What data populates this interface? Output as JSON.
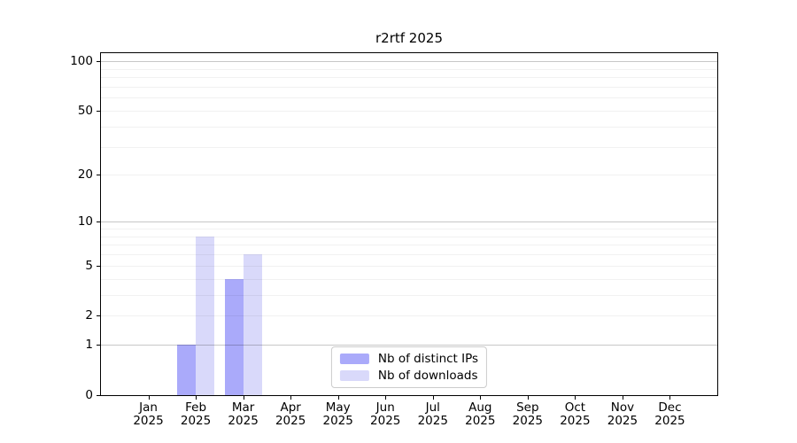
{
  "figure": {
    "title": "r2rtf 2025"
  },
  "chart_data": {
    "type": "bar",
    "title": "r2rtf 2025",
    "categories": [
      "Jan",
      "Feb",
      "Mar",
      "Apr",
      "May",
      "Jun",
      "Jul",
      "Aug",
      "Sep",
      "Oct",
      "Nov",
      "Dec"
    ],
    "category_year": "2025",
    "series": [
      {
        "name": "Nb of distinct IPs",
        "color": "#aaaafa",
        "values": [
          0,
          1,
          4,
          0,
          0,
          0,
          0,
          0,
          0,
          0,
          0,
          0
        ]
      },
      {
        "name": "Nb of downloads",
        "color": "#d9d9fa",
        "values": [
          0,
          8,
          6,
          0,
          0,
          0,
          0,
          0,
          0,
          0,
          0,
          0
        ]
      }
    ],
    "xlabel": "",
    "ylabel": "",
    "yticks": [
      0,
      1,
      2,
      5,
      10,
      20,
      50,
      100
    ],
    "ylim": [
      0,
      112
    ],
    "yscale": "log10(1+y)",
    "grid": true,
    "grid_minor_values": [
      2,
      3,
      4,
      5,
      6,
      7,
      8,
      9,
      20,
      30,
      40,
      50,
      60,
      70,
      80,
      90
    ],
    "grid_major_values": [
      1,
      10,
      100
    ],
    "legend": {
      "position": "lower center",
      "entries": [
        "Nb of distinct IPs",
        "Nb of downloads"
      ]
    }
  },
  "colors": {
    "bar_distinct_ips": "#aaaafa",
    "bar_downloads": "#d9d9fa",
    "spine": "#000000",
    "background": "#ffffff"
  }
}
